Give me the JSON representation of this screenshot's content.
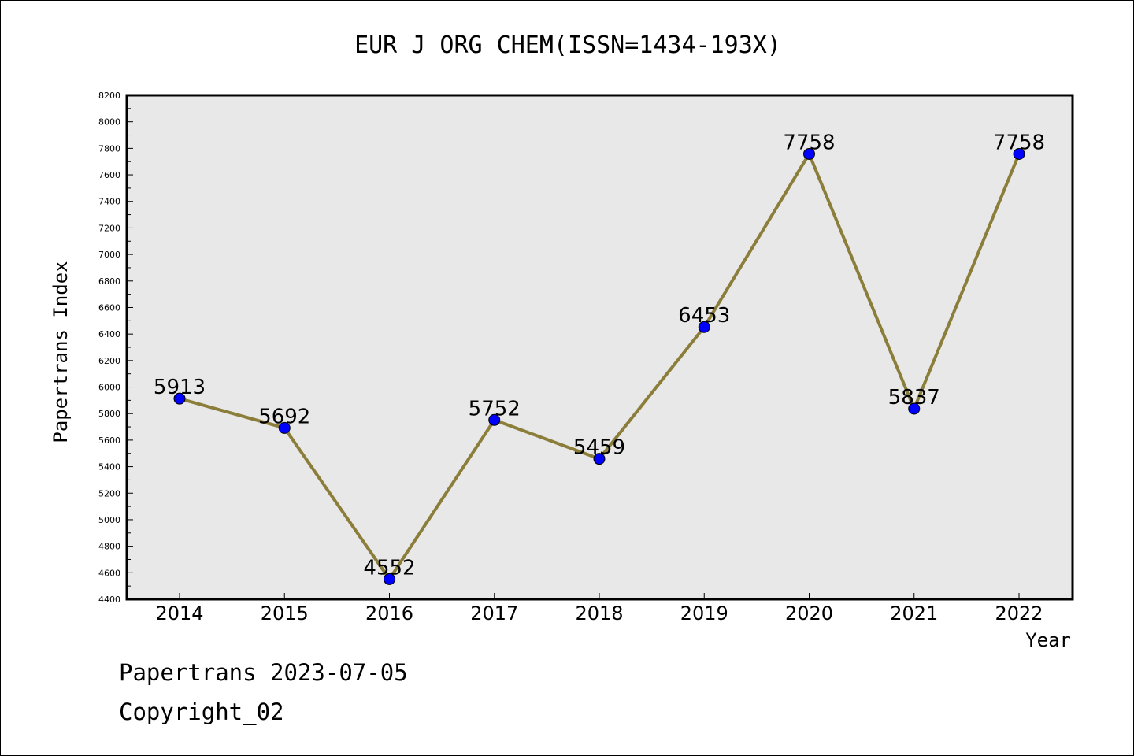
{
  "chart_data": {
    "type": "line",
    "title": "EUR J ORG CHEM(ISSN=1434-193X)",
    "xlabel": "Year",
    "ylabel": "Papertrans Index",
    "categories": [
      "2014",
      "2015",
      "2016",
      "2017",
      "2018",
      "2019",
      "2020",
      "2021",
      "2022"
    ],
    "series": [
      {
        "values": [
          5913,
          5692,
          4552,
          5752,
          5459,
          6453,
          7758,
          5837,
          7758
        ]
      }
    ],
    "ylim": [
      4400,
      8200
    ],
    "yticks": [
      4400,
      4600,
      4800,
      5000,
      5200,
      5400,
      5600,
      5800,
      6000,
      6200,
      6400,
      6600,
      6800,
      7000,
      7200,
      7400,
      7600,
      7800,
      8000,
      8200
    ],
    "grid": false,
    "line_color": "#8b7d3a",
    "marker_color": "#0000ff",
    "plot_background": "#e8e8e8"
  },
  "footer": {
    "line1": "Papertrans 2023-07-05",
    "line2": "Copyright_02"
  }
}
